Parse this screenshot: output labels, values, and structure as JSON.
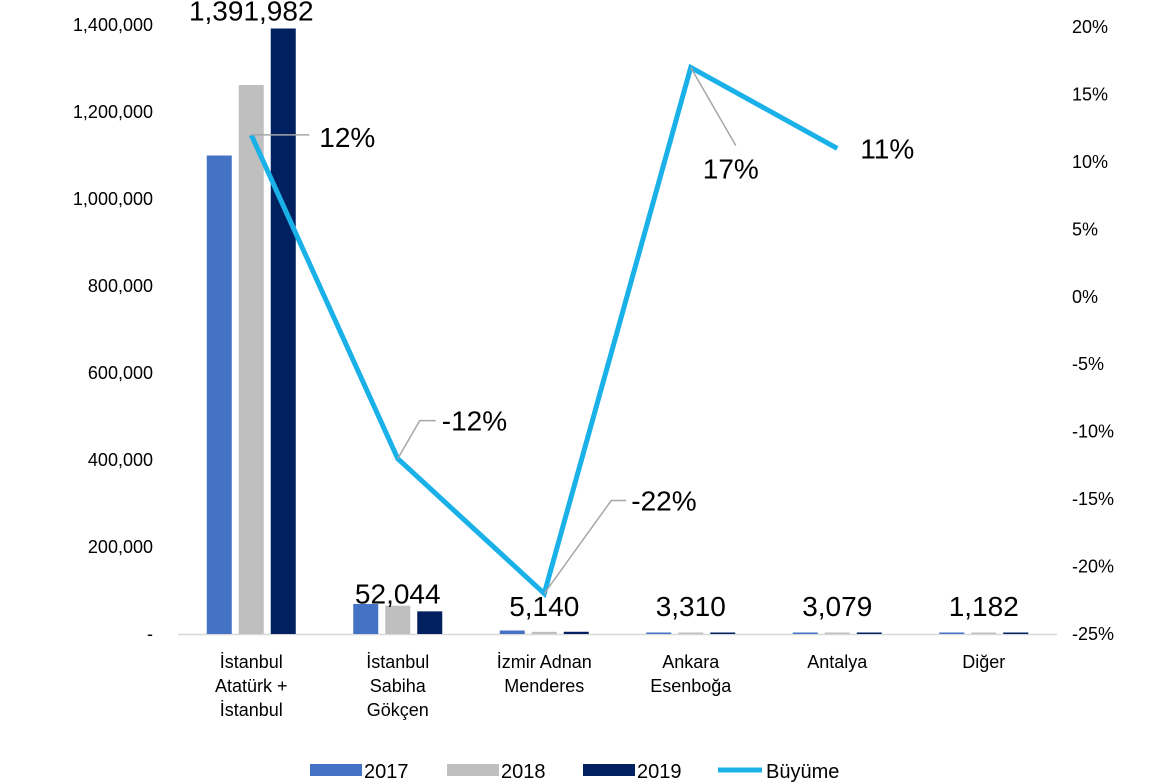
{
  "chart_data": {
    "type": "bar",
    "categories": [
      [
        "İstanbul",
        "Atatürk +",
        "İstanbul"
      ],
      [
        "İstanbul",
        "Sabiha",
        "Gökçen"
      ],
      [
        "İzmir Adnan",
        "Menderes"
      ],
      [
        "Ankara",
        "Esenboğa"
      ],
      [
        "Antalya"
      ],
      [
        "Diğer"
      ]
    ],
    "series": [
      {
        "name": "2017",
        "color": "#4472C4",
        "values": [
          1100000,
          69000,
          8000,
          1800,
          2800,
          900
        ]
      },
      {
        "name": "2018",
        "color": "#BFBFBF",
        "values": [
          1262000,
          65000,
          5000,
          1900,
          2800,
          1000
        ]
      },
      {
        "name": "2019",
        "color": "#002060",
        "values": [
          1391982,
          52044,
          5140,
          3310,
          3079,
          1182
        ]
      }
    ],
    "bar_value_labels": [
      "1,391,982",
      "52,044",
      "5,140",
      "3,310",
      "3,079",
      "1,182"
    ],
    "growth": {
      "name": "Büyüme",
      "color": "#1AB0E8",
      "values": [
        12,
        -12,
        -22,
        17,
        11
      ],
      "labels": [
        "12%",
        "-12%",
        "-22%",
        "17%",
        "11%"
      ]
    },
    "y_left": {
      "min": 0,
      "max": 1400000,
      "ticks": [
        0,
        200000,
        400000,
        600000,
        800000,
        1000000,
        1200000,
        1400000
      ],
      "tick_labels": [
        "-",
        "200,000",
        "400,000",
        "600,000",
        "800,000",
        "1,000,000",
        "1,200,000",
        "1,400,000"
      ]
    },
    "y_right": {
      "min": -25,
      "max": 20,
      "ticks": [
        -25,
        -20,
        -15,
        -10,
        -5,
        0,
        5,
        10,
        15,
        20
      ],
      "tick_labels": [
        "-25%",
        "-20%",
        "-15%",
        "-10%",
        "-5%",
        "0%",
        "5%",
        "10%",
        "15%",
        "20%"
      ]
    },
    "legend": {
      "position": "bottom",
      "items": [
        {
          "label": "2017",
          "kind": "bar",
          "color": "#4472C4"
        },
        {
          "label": "2018",
          "kind": "bar",
          "color": "#BFBFBF"
        },
        {
          "label": "2019",
          "kind": "bar",
          "color": "#002060"
        },
        {
          "label": "Büyüme",
          "kind": "line",
          "color": "#1AB0E8"
        }
      ]
    }
  }
}
